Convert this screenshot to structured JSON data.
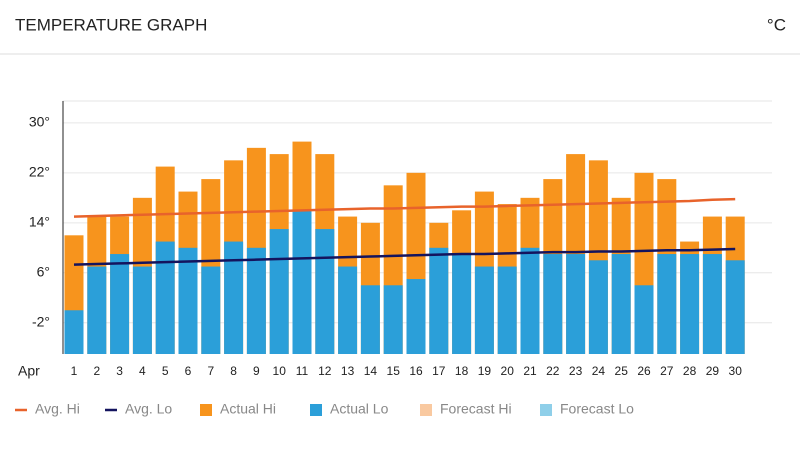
{
  "header": {
    "title": "TEMPERATURE GRAPH",
    "unit": "°C"
  },
  "chart_data": {
    "type": "bar",
    "x_label": "Apr",
    "categories": [
      "1",
      "2",
      "3",
      "4",
      "5",
      "6",
      "7",
      "8",
      "9",
      "10",
      "11",
      "12",
      "13",
      "14",
      "15",
      "16",
      "17",
      "18",
      "19",
      "20",
      "21",
      "22",
      "23",
      "24",
      "25",
      "26",
      "27",
      "28",
      "29",
      "30"
    ],
    "ylim": [
      -7,
      33.5
    ],
    "yticks": [
      {
        "value": -2,
        "label": "-2°"
      },
      {
        "value": 6,
        "label": "6°"
      },
      {
        "value": 14,
        "label": "14°"
      },
      {
        "value": 22,
        "label": "22°"
      },
      {
        "value": 30,
        "label": "30°"
      }
    ],
    "grid": true,
    "series": [
      {
        "name": "Avg. Hi",
        "type": "line",
        "color": "#e8632b",
        "values": [
          15.0,
          15.1,
          15.2,
          15.3,
          15.4,
          15.5,
          15.6,
          15.7,
          15.8,
          15.9,
          16.0,
          16.1,
          16.2,
          16.3,
          16.3,
          16.4,
          16.5,
          16.6,
          16.6,
          16.7,
          16.8,
          16.9,
          17.0,
          17.1,
          17.2,
          17.3,
          17.4,
          17.5,
          17.7,
          17.8
        ]
      },
      {
        "name": "Avg. Lo",
        "type": "line",
        "color": "#14145e",
        "values": [
          7.3,
          7.4,
          7.5,
          7.6,
          7.7,
          7.8,
          7.9,
          8.0,
          8.1,
          8.2,
          8.3,
          8.4,
          8.5,
          8.6,
          8.7,
          8.8,
          8.9,
          9.0,
          9.0,
          9.1,
          9.2,
          9.3,
          9.3,
          9.4,
          9.4,
          9.5,
          9.6,
          9.6,
          9.7,
          9.8
        ]
      },
      {
        "name": "Actual Hi",
        "type": "bar",
        "color": "#f7941d",
        "values": [
          12,
          15,
          15,
          18,
          23,
          19,
          21,
          24,
          26,
          25,
          27,
          25,
          15,
          14,
          20,
          22,
          14,
          16,
          19,
          17,
          18,
          21,
          25,
          24,
          18,
          22,
          21,
          11,
          15,
          15
        ]
      },
      {
        "name": "Actual Lo",
        "type": "bar",
        "color": "#2b9fd9",
        "values": [
          0,
          7,
          9,
          7,
          11,
          10,
          7,
          11,
          10,
          13,
          16,
          13,
          7,
          4,
          4,
          5,
          10,
          9,
          7,
          7,
          10,
          9,
          9,
          8,
          9,
          4,
          9,
          9,
          9,
          8
        ]
      },
      {
        "name": "Forecast Hi",
        "type": "bar",
        "color": "#f9c9a0",
        "values": [
          null,
          null,
          null,
          null,
          null,
          null,
          null,
          null,
          null,
          null,
          null,
          null,
          null,
          null,
          null,
          null,
          null,
          null,
          null,
          null,
          null,
          null,
          null,
          null,
          null,
          null,
          null,
          null,
          null,
          null
        ]
      },
      {
        "name": "Forecast Lo",
        "type": "bar",
        "color": "#8fcfe9",
        "values": [
          null,
          null,
          null,
          null,
          null,
          null,
          null,
          null,
          null,
          null,
          null,
          null,
          null,
          null,
          null,
          null,
          null,
          null,
          null,
          null,
          null,
          null,
          null,
          null,
          null,
          null,
          null,
          null,
          null,
          null
        ]
      }
    ]
  }
}
